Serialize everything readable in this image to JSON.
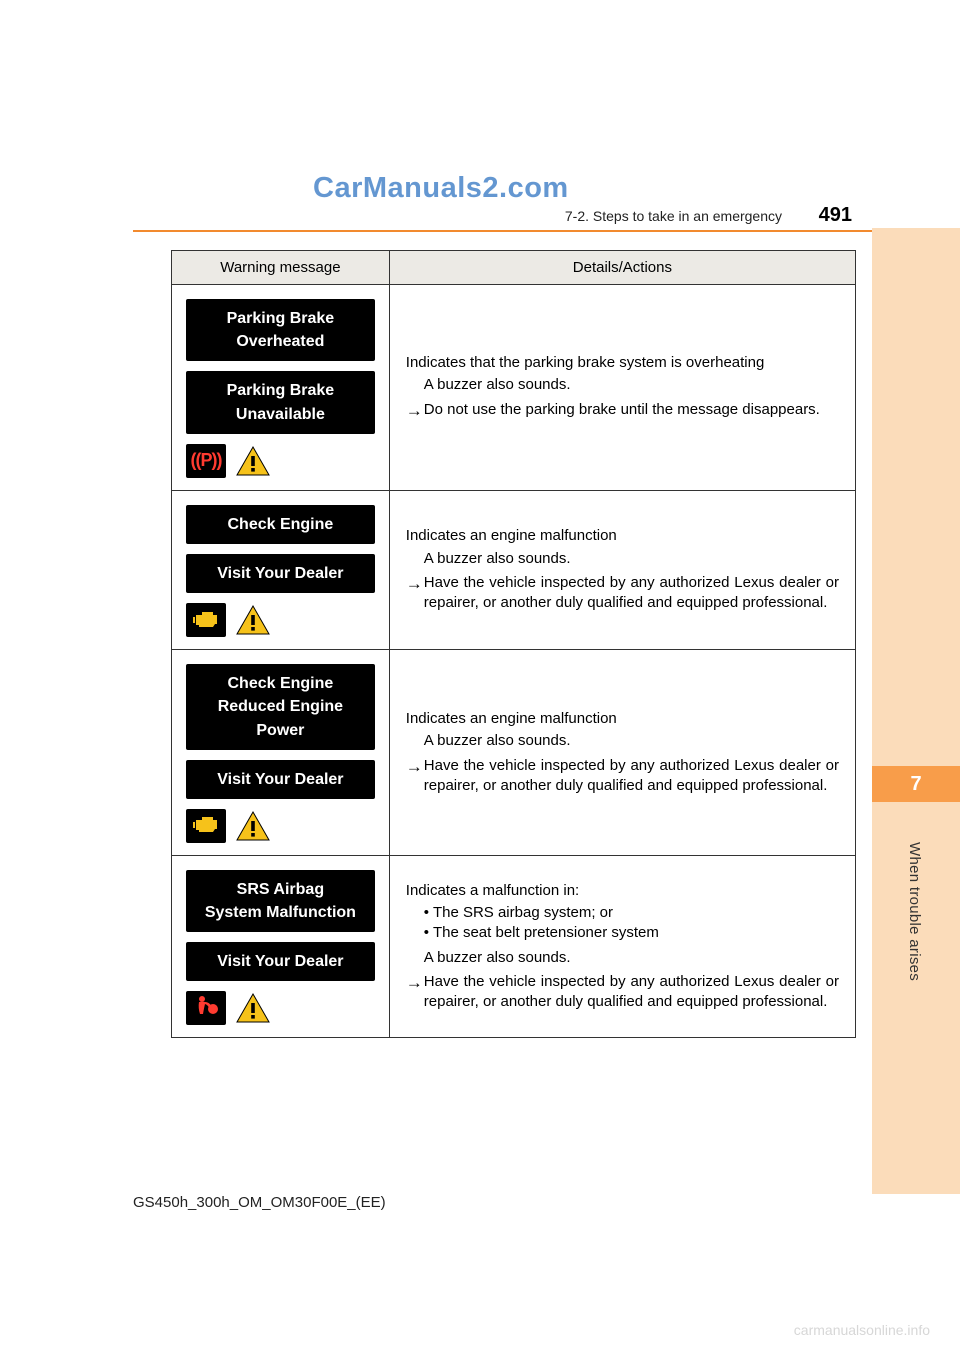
{
  "watermark": "CarManuals2.com",
  "header": {
    "section": "7-2. Steps to take in an emergency",
    "page_number": "491"
  },
  "side_tab": {
    "chapter_number": "7",
    "chapter_title": "When trouble arises"
  },
  "table": {
    "columns": [
      "Warning message",
      "Details/Actions"
    ],
    "rows": [
      {
        "messages": [
          "Parking Brake\nOverheated",
          "Parking Brake\nUnavailable"
        ],
        "icon_left": "parking",
        "details": {
          "lead": "Indicates that the parking brake system is overheating",
          "sub": "A buzzer also sounds.",
          "arrow": "Do not use the parking brake until the message disappears.",
          "bullets": []
        }
      },
      {
        "messages": [
          "Check Engine",
          "Visit Your Dealer"
        ],
        "icon_left": "engine",
        "details": {
          "lead": "Indicates an engine malfunction",
          "sub": "A buzzer also sounds.",
          "arrow": "Have the vehicle inspected by any authorized Lexus dealer or repairer, or another duly qualified and equipped professional.",
          "bullets": []
        }
      },
      {
        "messages": [
          "Check Engine\nReduced Engine\nPower",
          "Visit Your Dealer"
        ],
        "icon_left": "engine",
        "details": {
          "lead": "Indicates an engine malfunction",
          "sub": "A buzzer also sounds.",
          "arrow": "Have the vehicle inspected by any authorized Lexus dealer or repairer, or another duly qualified and equipped professional.",
          "bullets": []
        }
      },
      {
        "messages": [
          "SRS Airbag\nSystem Malfunction",
          "Visit Your Dealer"
        ],
        "icon_left": "airbag",
        "details": {
          "lead": "Indicates a malfunction in:",
          "sub": "A buzzer also sounds.",
          "arrow": "Have the vehicle inspected by any authorized Lexus dealer or repairer, or another duly qualified and equipped professional.",
          "bullets": [
            "The SRS airbag system; or",
            "The seat belt pretensioner system"
          ]
        }
      }
    ]
  },
  "footer": {
    "model": "GS450h_300h_OM_OM30F00E_(EE)",
    "site": "carmanualsonline.info"
  },
  "colors": {
    "side_tab_bg": "#fbdcba",
    "side_tab_num_bg": "#f89d4a",
    "hr": "#f28a2e",
    "table_header_bg": "#eceae5",
    "warn_yellow": "#f6c21a",
    "warn_red": "#ff3b30"
  }
}
